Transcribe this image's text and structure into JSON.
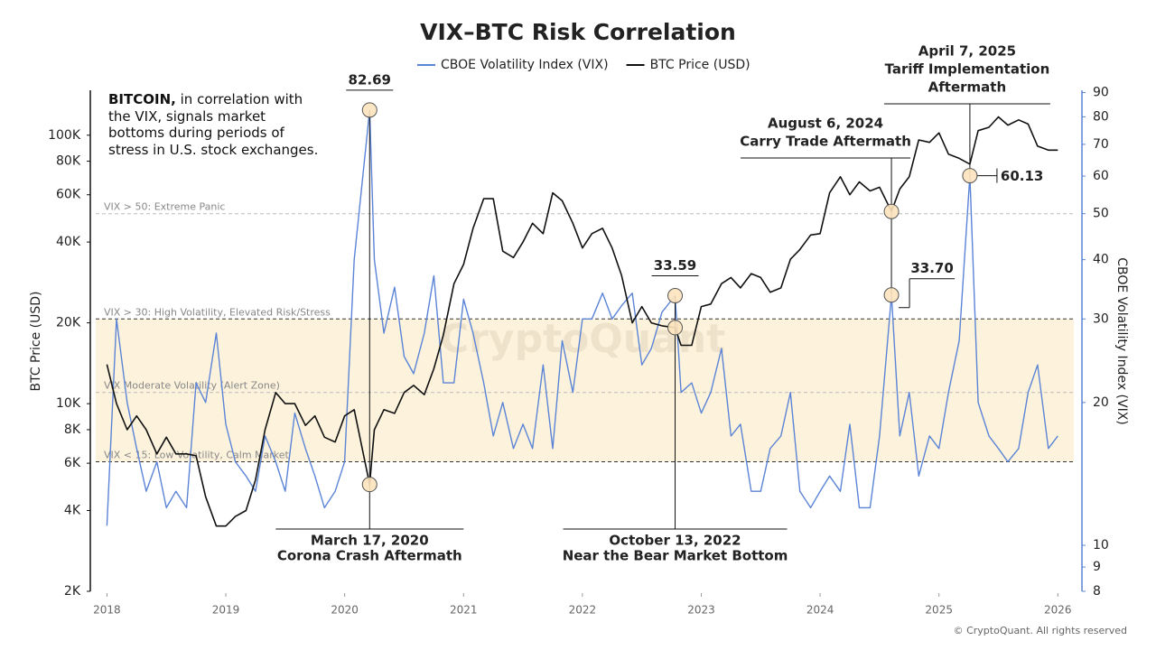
{
  "chart_data": {
    "type": "line",
    "title": "VIX–BTC Risk Correlation",
    "note_bold": "BITCOIN,",
    "note": "in correlation with the VIX, signals market bottoms during periods of stress in U.S. stock exchanges.",
    "watermark": "CryptoQuant",
    "credit": "© CryptoQuant. All rights reserved",
    "ylabel": "BTC Price (USD)",
    "y2label": "CBOE Volatility Index (VIX)",
    "log_scale": true,
    "xlim": [
      2017.86,
      2026.18
    ],
    "xticks": [
      2018,
      2019,
      2020,
      2021,
      2022,
      2023,
      2024,
      2025,
      2026
    ],
    "ylim": [
      2000,
      147000
    ],
    "yticks": [
      {
        "value": 2000,
        "label": "2K"
      },
      {
        "value": 4000,
        "label": "4K"
      },
      {
        "value": 6000,
        "label": "6K"
      },
      {
        "value": 8000,
        "label": "8K"
      },
      {
        "value": 10000,
        "label": "10K"
      },
      {
        "value": 20000,
        "label": "20K"
      },
      {
        "value": 40000,
        "label": "40K"
      },
      {
        "value": 60000,
        "label": "60K"
      },
      {
        "value": 80000,
        "label": "80K"
      },
      {
        "value": 100000,
        "label": "100K"
      }
    ],
    "y2lim": [
      8,
      91
    ],
    "y2ticks": [
      8,
      9,
      10,
      20,
      30,
      40,
      50,
      60,
      70,
      80,
      90
    ],
    "thresholds": [
      {
        "value": 50,
        "label": "VIX > 50: Extreme Panic"
      },
      {
        "value": 30,
        "label": "VIX > 30: High Volatility, Elevated Risk/Stress"
      },
      {
        "value": 21,
        "label": "VIX Moderate Volatility (Alert Zone)"
      },
      {
        "value": 15,
        "label": "VIX < 15: Low Volatility, Calm Market"
      }
    ],
    "zone": [
      15,
      30
    ],
    "x": [
      2018,
      2018.08,
      2018.17,
      2018.25,
      2018.33,
      2018.42,
      2018.5,
      2018.58,
      2018.67,
      2018.75,
      2018.83,
      2018.92,
      2019,
      2019.08,
      2019.17,
      2019.25,
      2019.33,
      2019.42,
      2019.5,
      2019.58,
      2019.67,
      2019.75,
      2019.83,
      2019.92,
      2020,
      2020.08,
      2020.21,
      2020.25,
      2020.33,
      2020.42,
      2020.5,
      2020.58,
      2020.67,
      2020.75,
      2020.83,
      2020.92,
      2021,
      2021.08,
      2021.17,
      2021.25,
      2021.33,
      2021.42,
      2021.5,
      2021.58,
      2021.67,
      2021.75,
      2021.83,
      2021.92,
      2022,
      2022.08,
      2022.17,
      2022.25,
      2022.33,
      2022.42,
      2022.5,
      2022.58,
      2022.67,
      2022.78,
      2022.83,
      2022.92,
      2023,
      2023.08,
      2023.17,
      2023.25,
      2023.33,
      2023.42,
      2023.5,
      2023.58,
      2023.67,
      2023.75,
      2023.83,
      2023.92,
      2024,
      2024.08,
      2024.17,
      2024.25,
      2024.33,
      2024.42,
      2024.5,
      2024.6,
      2024.67,
      2024.75,
      2024.83,
      2024.92,
      2025,
      2025.08,
      2025.17,
      2025.26,
      2025.33,
      2025.42,
      2025.5,
      2025.58,
      2025.67,
      2025.75,
      2025.83,
      2025.92,
      2026
    ],
    "series": [
      {
        "name": "CBOE Volatility Index (VIX)",
        "color": "#5b84d6",
        "axis": "y2",
        "values": [
          11,
          30,
          20,
          16,
          13,
          15,
          12,
          13,
          12,
          22,
          20,
          28,
          18,
          15,
          14,
          13,
          17,
          15,
          13,
          19,
          16,
          14,
          12,
          13,
          15,
          40,
          82.69,
          40,
          28,
          35,
          25,
          23,
          28,
          37,
          22,
          22,
          33,
          28,
          22,
          17,
          20,
          16,
          18,
          16,
          24,
          16,
          27,
          21,
          30,
          30,
          34,
          30,
          32,
          34,
          24,
          26,
          31,
          33.59,
          21,
          22,
          19,
          21,
          26,
          17,
          18,
          13,
          13,
          16,
          17,
          21,
          13,
          12,
          13,
          14,
          13,
          18,
          12,
          12,
          17,
          33.7,
          17,
          21,
          14,
          17,
          16,
          21,
          27,
          60.13,
          20,
          17,
          16,
          15,
          16,
          21,
          24,
          16,
          17
        ],
        "value_labels": [
          null,
          null,
          null,
          null,
          null,
          null,
          null,
          null,
          null,
          null,
          null,
          null,
          null,
          null,
          null,
          null,
          null,
          null,
          null,
          null,
          null,
          null,
          null,
          null,
          null,
          null,
          "82.69",
          null,
          null,
          null,
          null,
          null,
          null,
          null,
          null,
          null,
          null,
          null,
          null,
          null,
          null,
          null,
          null,
          null,
          null,
          null,
          null,
          null,
          null,
          null,
          null,
          null,
          null,
          null,
          null,
          null,
          null,
          "33.59",
          null,
          null,
          null,
          null,
          null,
          null,
          null,
          null,
          null,
          null,
          null,
          null,
          null,
          null,
          null,
          null,
          null,
          null,
          null,
          null,
          null,
          "33.70",
          null,
          null,
          null,
          null,
          null,
          null,
          null,
          "60.13",
          null,
          null,
          null,
          null,
          null,
          null,
          null,
          null,
          null
        ]
      },
      {
        "name": "BTC Price (USD)",
        "color": "#111111",
        "values": [
          14000,
          10000,
          8000,
          9000,
          8000,
          6500,
          7500,
          6500,
          6500,
          6400,
          4500,
          3500,
          3500,
          3800,
          4000,
          5200,
          8000,
          11000,
          10000,
          10000,
          8300,
          9000,
          7500,
          7200,
          9000,
          9500,
          5000,
          8000,
          9500,
          9200,
          11000,
          11700,
          10800,
          13500,
          18000,
          28000,
          33000,
          45000,
          58000,
          58000,
          37000,
          35000,
          40000,
          47000,
          43000,
          61000,
          57000,
          47000,
          38000,
          43000,
          45000,
          38000,
          30000,
          20000,
          23000,
          20000,
          19500,
          19200,
          16500,
          16500,
          23000,
          23500,
          28000,
          29500,
          27000,
          30500,
          29500,
          26000,
          27000,
          34500,
          37500,
          42500,
          43000,
          61000,
          70000,
          60000,
          67000,
          62000,
          64000,
          52000,
          63000,
          70000,
          96000,
          94000,
          102000,
          85000,
          82000,
          78000,
          104000,
          107000,
          117000,
          109000,
          114000,
          110000,
          91000,
          88000,
          88000
        ]
      }
    ],
    "annotations": [
      {
        "date": "March 17, 2020",
        "caption": [
          "Corona Crash Aftermath"
        ]
      },
      {
        "date": "October 13, 2022",
        "caption": [
          "Near the Bear Market Bottom"
        ]
      },
      {
        "date": "August 6, 2024",
        "caption": [
          "Carry Trade Aftermath"
        ]
      },
      {
        "date": "April 7, 2025",
        "caption": [
          "Tariff Implementation",
          "Aftermath"
        ]
      }
    ]
  }
}
